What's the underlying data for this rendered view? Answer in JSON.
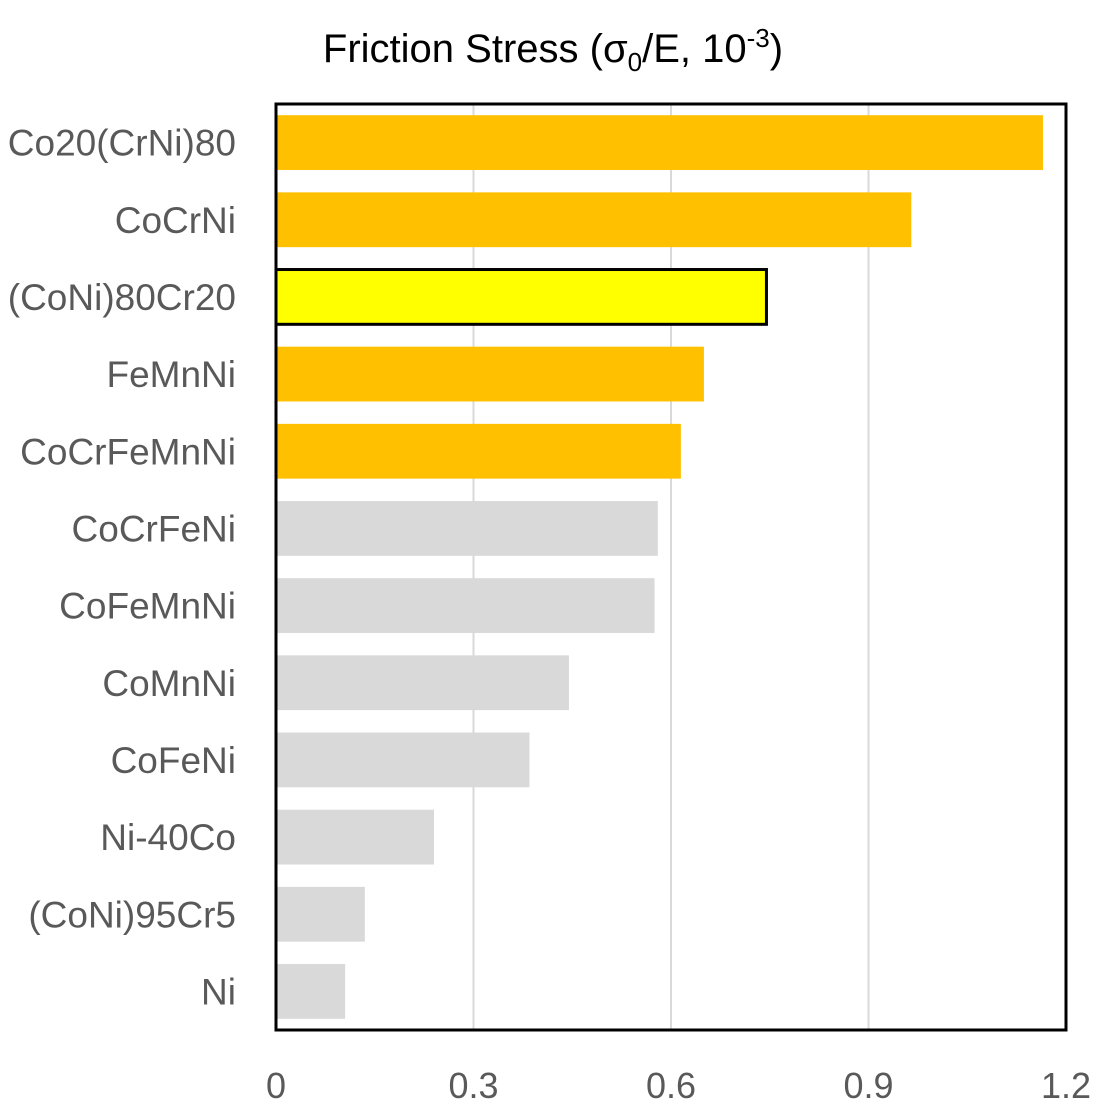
{
  "chart_data": {
    "type": "bar",
    "orientation": "horizontal",
    "title": {
      "main": "Friction Stress (σ",
      "sub": "0",
      "mid": "/E, 10",
      "sup": "-3",
      "end": ")"
    },
    "xlim": [
      0,
      1.2
    ],
    "x_ticks": [
      "0",
      "0.3",
      "0.6",
      "0.9",
      "1.2"
    ],
    "x_tick_values": [
      0,
      0.3,
      0.6,
      0.9,
      1.2
    ],
    "grid": "vertical",
    "categories": [
      "Co20(CrNi)80",
      "CoCrNi",
      "(CoNi)80Cr20",
      "FeMnNi",
      "CoCrFeMnNi",
      "CoCrFeNi",
      "CoFeMnNi",
      "CoMnNi",
      "CoFeNi",
      "Ni-40Co",
      "(CoNi)95Cr5",
      "Ni"
    ],
    "values": [
      1.165,
      0.965,
      0.745,
      0.65,
      0.615,
      0.58,
      0.575,
      0.445,
      0.385,
      0.24,
      0.135,
      0.105
    ],
    "bar_colors": [
      "#FFC000",
      "#FFC000",
      "#FFFF00",
      "#FFC000",
      "#FFC000",
      "#D9D9D9",
      "#D9D9D9",
      "#D9D9D9",
      "#D9D9D9",
      "#D9D9D9",
      "#D9D9D9",
      "#D9D9D9"
    ],
    "highlighted_category": "(CoNi)80Cr20"
  }
}
